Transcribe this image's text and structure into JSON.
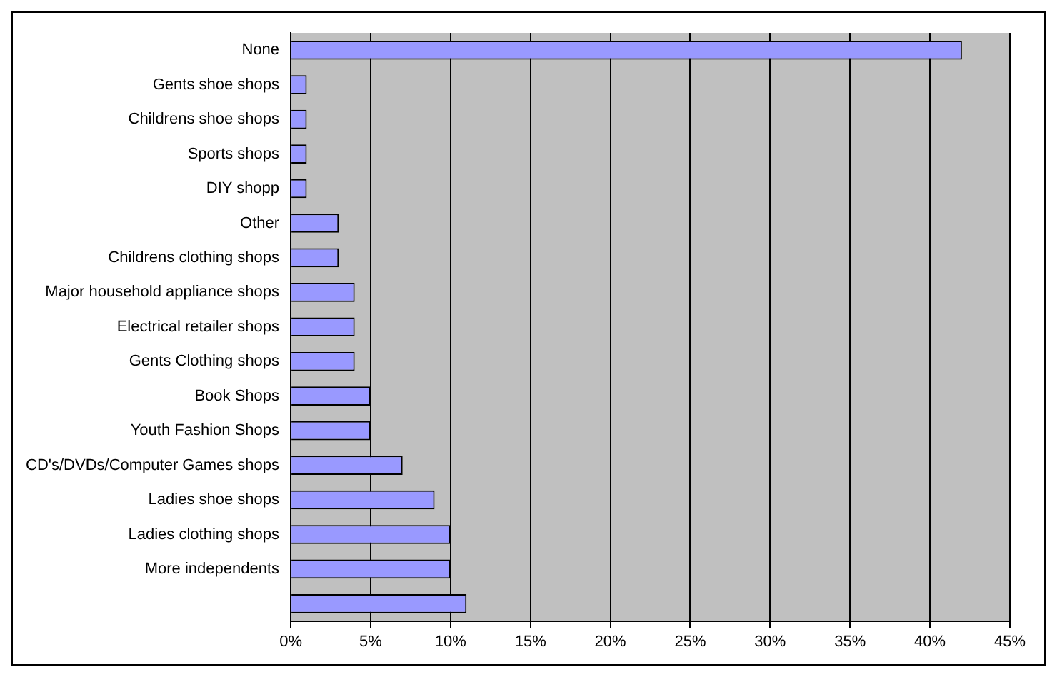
{
  "chart_data": {
    "type": "bar",
    "orientation": "horizontal",
    "categories": [
      "None",
      "Gents shoe shops",
      "Childrens shoe shops",
      "Sports shops",
      "DIY shopp",
      "Other",
      "Childrens clothing shops",
      "Major household appliance shops",
      "Electrical retailer shops",
      "Gents Clothing shops",
      "Book Shops",
      "Youth Fashion Shops",
      "CD's/DVDs/Computer Games shops",
      "Ladies shoe shops",
      "Ladies clothing shops",
      "More independents",
      null
    ],
    "values": [
      42,
      1,
      1,
      1,
      1,
      3,
      3,
      4,
      4,
      4,
      5,
      5,
      7,
      9,
      10,
      10,
      11
    ],
    "color": "#9999ff",
    "xlim": [
      0,
      45
    ],
    "xticks": [
      {
        "value": 0,
        "label": "0%"
      },
      {
        "value": 5,
        "label": "5%"
      },
      {
        "value": 10,
        "label": "10%"
      },
      {
        "value": 15,
        "label": "15%"
      },
      {
        "value": 20,
        "label": "20%"
      },
      {
        "value": 25,
        "label": "25%"
      },
      {
        "value": 30,
        "label": "30%"
      },
      {
        "value": 35,
        "label": "35%"
      },
      {
        "value": 40,
        "label": "40%"
      },
      {
        "value": 45,
        "label": "45%"
      }
    ],
    "grid": "x",
    "legend": false
  }
}
